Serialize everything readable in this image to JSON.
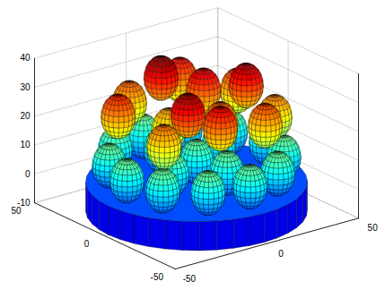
{
  "chart_data": {
    "type": "spheres3d",
    "xlim": [
      -50,
      50
    ],
    "ylim": [
      -50,
      50
    ],
    "zlim": [
      -10,
      40
    ],
    "xticks": [
      -50,
      0,
      50
    ],
    "yticks": [
      -50,
      0,
      50
    ],
    "zticks": [
      -10,
      0,
      10,
      20,
      30,
      40
    ],
    "grid": true,
    "spheres": {
      "x": [
        38,
        33,
        19,
        0,
        -19,
        -33,
        -38,
        -33,
        -19,
        0,
        19,
        33,
        18,
        -4,
        -18,
        2,
        0,
        30,
        14,
        -12,
        -32,
        -30,
        -10,
        16,
        32,
        10,
        -12,
        4,
        24,
        -20,
        -4
      ],
      "y": [
        0,
        19,
        33,
        38,
        33,
        19,
        0,
        -19,
        -33,
        -38,
        -33,
        -19,
        8,
        20,
        -6,
        -19,
        0,
        10,
        30,
        32,
        14,
        -16,
        -30,
        -28,
        -14,
        8,
        4,
        -12,
        -4,
        -20,
        20
      ],
      "z": [
        7,
        7,
        7,
        7,
        7,
        7,
        7,
        7,
        7,
        7,
        7,
        7,
        7,
        7,
        7,
        7,
        7,
        24,
        26,
        22,
        25,
        21,
        27,
        23,
        20,
        28,
        19,
        22,
        30,
        31,
        32
      ],
      "radius": 7.5
    },
    "base": {
      "radius": 48,
      "z": [
        -10,
        0
      ]
    }
  }
}
